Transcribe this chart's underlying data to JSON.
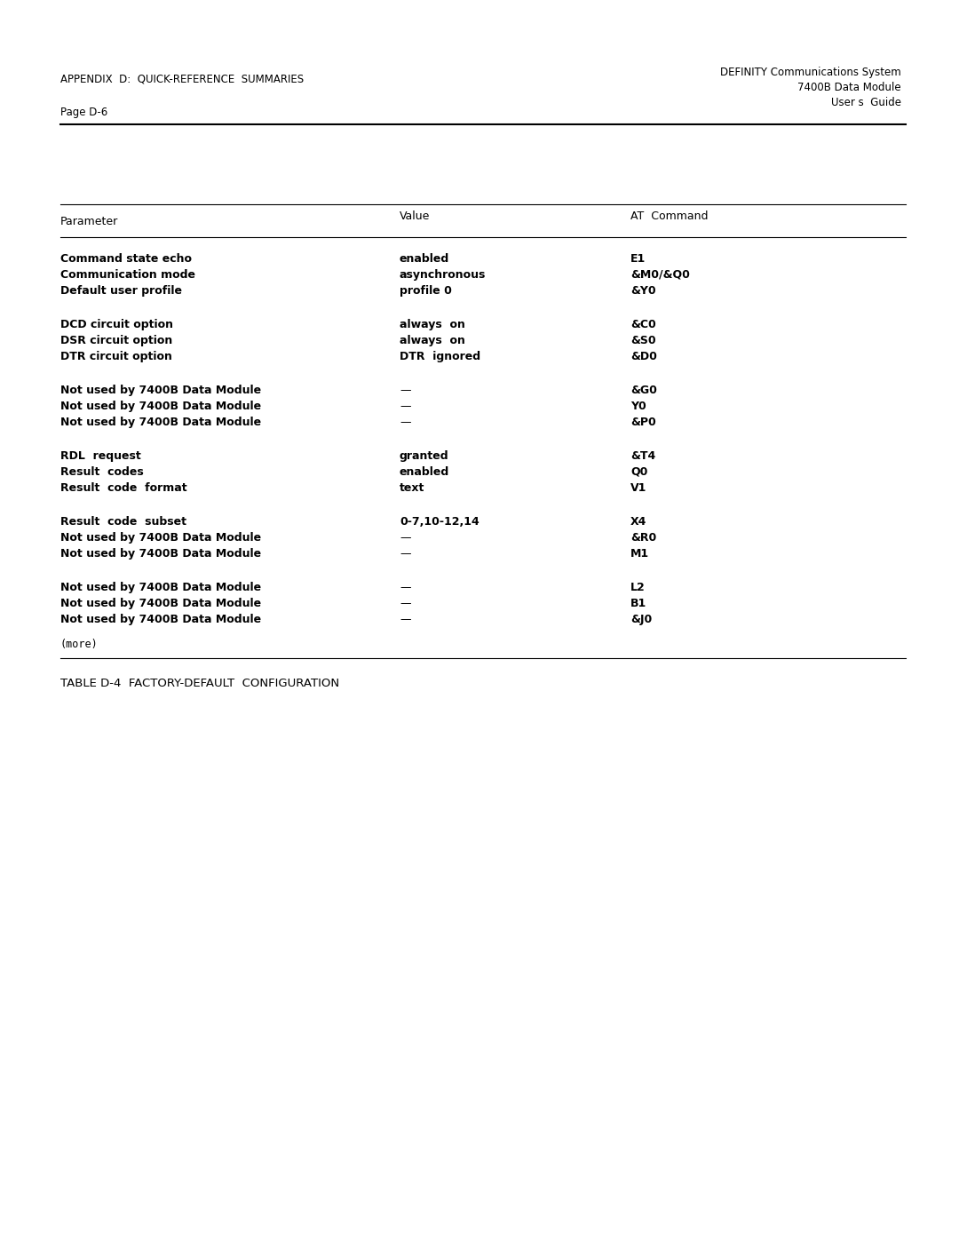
{
  "header_left_line1": "APPENDIX  D:  QUICK-REFERENCE  SUMMARIES",
  "header_right_line1": "DEFINITY Communications System",
  "header_right_line2": "7400B Data Module",
  "header_right_line3": "User s  Guide",
  "page_label": "Page D-6",
  "table_caption": "TABLE D-4  FACTORY-DEFAULT  CONFIGURATION",
  "col_headers": [
    "Parameter",
    "Value",
    "AT  Command"
  ],
  "rows": [
    {
      "params": [
        "Command state echo",
        "Communication mode",
        "Default user profile"
      ],
      "values": [
        "enabled",
        "asynchronous",
        "profile 0"
      ],
      "commands": [
        "E1",
        "&M0/&Q0",
        "&Y0"
      ],
      "bold_params": true,
      "bold_values": true,
      "bold_commands": true
    },
    {
      "params": [
        "DCD circuit option",
        "DSR circuit option",
        "DTR circuit option"
      ],
      "values": [
        "always  on",
        "always  on",
        "DTR  ignored"
      ],
      "commands": [
        "&C0",
        "&S0",
        "&D0"
      ],
      "bold_params": true,
      "bold_values": true,
      "bold_commands": true
    },
    {
      "params": [
        "Not used by 7400B Data Module",
        "Not used by 7400B Data Module",
        "Not used by 7400B Data Module"
      ],
      "values": [
        "—",
        "—",
        "—"
      ],
      "commands": [
        "&G0",
        "Y0",
        "&P0"
      ],
      "bold_params": true,
      "bold_values": false,
      "bold_commands": true
    },
    {
      "params": [
        "RDL  request",
        "Result  codes",
        "Result  code  format"
      ],
      "values": [
        "granted",
        "enabled",
        "text"
      ],
      "commands": [
        "&T4",
        "Q0",
        "V1"
      ],
      "bold_params": true,
      "bold_values": true,
      "bold_commands": true
    },
    {
      "params": [
        "Result  code  subset",
        "Not used by 7400B Data Module",
        "Not used by 7400B Data Module"
      ],
      "values": [
        "0-7,10-12,14",
        "—",
        "—"
      ],
      "commands": [
        "X4",
        "&R0",
        "M1"
      ],
      "bold_params": true,
      "bold_values": true,
      "bold_commands": true
    },
    {
      "params": [
        "Not used by 7400B Data Module",
        "Not used by 7400B Data Module",
        "Not used by 7400B Data Module"
      ],
      "values": [
        "—",
        "—",
        "—"
      ],
      "commands": [
        "L2",
        "B1",
        "&J0"
      ],
      "bold_params": true,
      "bold_values": false,
      "bold_commands": true
    }
  ],
  "more_text": "(more)",
  "bg_color": "#ffffff",
  "text_color": "#000000"
}
